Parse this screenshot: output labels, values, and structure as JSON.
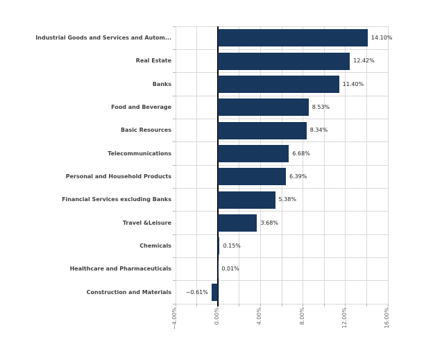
{
  "chart_data": {
    "type": "bar",
    "orientation": "horizontal",
    "title": "",
    "xlabel": "",
    "ylabel": "",
    "legend": "none",
    "grid": true,
    "categories": [
      "Industrial Goods and Services and Autom...",
      "Real Estate",
      "Banks",
      "Food and Beverage",
      "Basic Resources",
      "Telecommunications",
      "Personal and Household Products",
      "Financial Services excluding Banks",
      "Travel &Leisure",
      "Chemicals",
      "Healthcare and Pharmaceuticals",
      "Construction and Materials"
    ],
    "values": [
      14.1,
      12.42,
      11.4,
      8.53,
      8.34,
      6.68,
      6.39,
      5.38,
      3.68,
      0.15,
      0.01,
      -0.61
    ],
    "value_labels": [
      "14.10%",
      "12.42%",
      "11.40%",
      "8.53%",
      "8.34%",
      "6.68%",
      "6.39%",
      "5.38%",
      "3.68%",
      "0.15%",
      "0.01%",
      "−0.61%"
    ],
    "xlim": [
      -4,
      16
    ],
    "x_major_ticks": [
      -4,
      0,
      4,
      8,
      12,
      16
    ],
    "x_major_tick_labels": [
      "−4.00%",
      "0.00%",
      "4.00%",
      "8.00%",
      "12.00%",
      "16.00%"
    ],
    "x_minor_step": 2,
    "colors": {
      "bar": "#17375d",
      "gridline": "#d9d9d9",
      "zero_line": "#000000",
      "category_label": "#3f3f3f",
      "value_label": "#1f1f1f",
      "axis_tick_label": "#666666",
      "background": "#ffffff"
    }
  }
}
